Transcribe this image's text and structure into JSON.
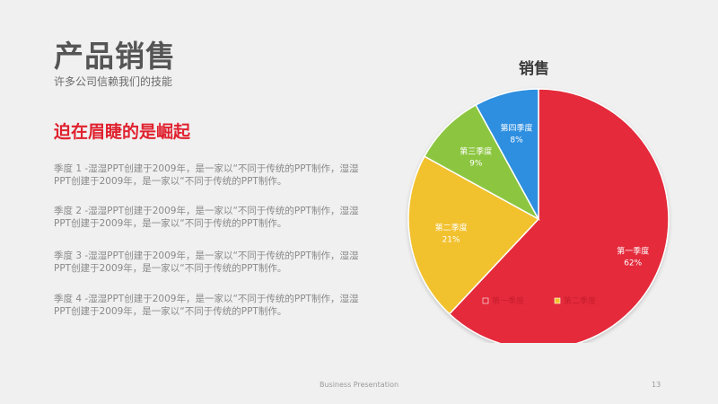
{
  "slide": {
    "title": "产品销售",
    "subtitle": "许多公司信赖我们的技能",
    "headline": "迫在眉睫的是崛起",
    "paragraphs": [
      "季度 1 -湿湿PPT创建于2009年，是一家以“不同于传统的PPT制作，湿湿PPT创建于2009年，是一家以“不同于传统的PPT制作。",
      "季度 2 -湿湿PPT创建于2009年，是一家以“不同于传统的PPT制作，湿湿PPT创建于2009年，是一家以“不同于传统的PPT制作。",
      "季度 3 -湿湿PPT创建于2009年，是一家以“不同于传统的PPT制作，湿湿PPT创建于2009年，是一家以“不同于传统的PPT制作。",
      "季度 4 -湿湿PPT创建于2009年，是一家以“不同于传统的PPT制作，湿湿PPT创建于2009年，是一家以“不同于传统的PPT制作。"
    ],
    "footer": "Business Presentation",
    "page_number": "13"
  },
  "chart_data": {
    "type": "pie",
    "title": "销售",
    "categories": [
      "第一季度",
      "第二季度",
      "第三季度",
      "第四季度"
    ],
    "values": [
      62,
      21,
      9,
      8
    ],
    "value_labels": [
      "62%",
      "21%",
      "9%",
      "8%"
    ],
    "colors": [
      "#e4293a",
      "#f2c12e",
      "#8cc63f",
      "#2f8fe0"
    ],
    "legend": {
      "placement": "bottom",
      "visible_entries": [
        "第一季度",
        "第二季度"
      ]
    }
  }
}
